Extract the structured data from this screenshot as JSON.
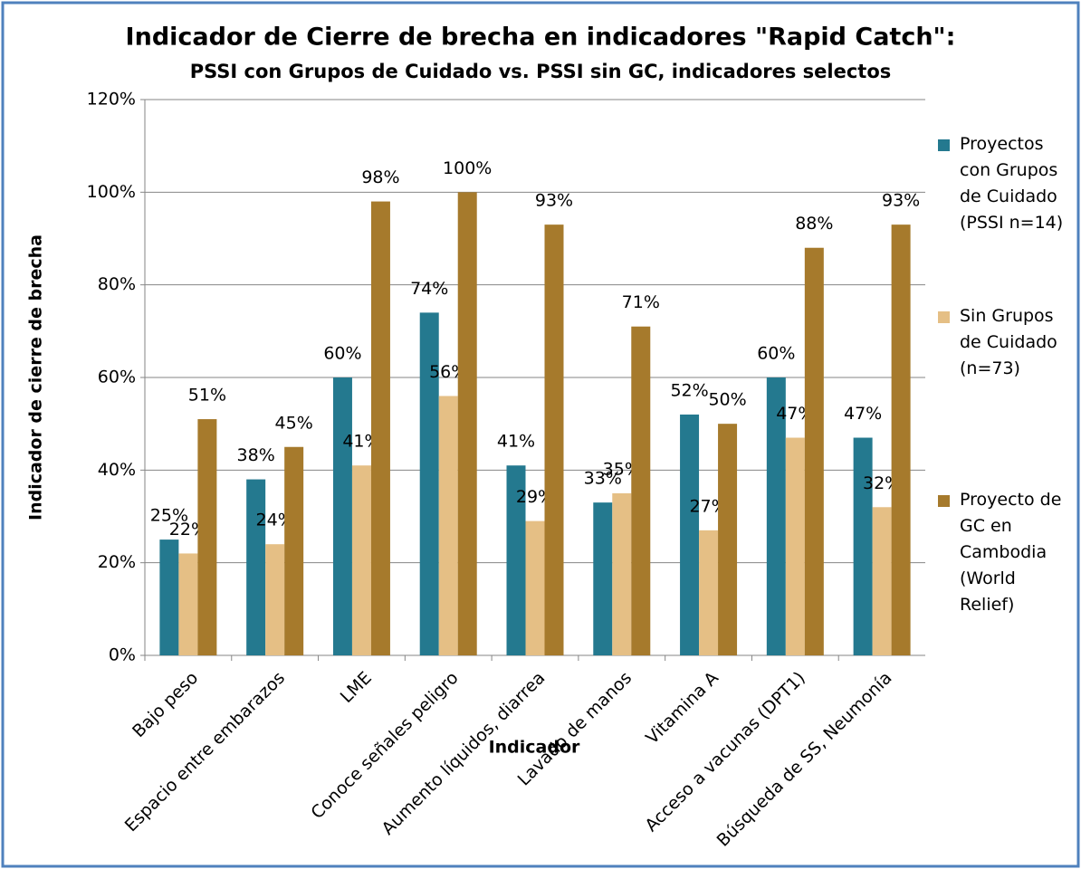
{
  "chart_data": {
    "type": "bar",
    "title": "Indicador de Cierre de brecha en indicadores \"Rapid Catch\":",
    "subtitle": "PSSI con Grupos de Cuidado vs. PSSI sin GC, indicadores selectos",
    "x_label": "Indicador",
    "y_label": "Indicador de cierre de brecha",
    "categories": [
      "Bajo peso",
      "Espacio entre embarazos",
      "LME",
      "Conoce señales peligro",
      "Aumento líquidos, diarrea",
      "Lavado de manos",
      "Vitamina A",
      "Acceso a vacunas (DPT1)",
      "Búsqueda de SS, Neumonía"
    ],
    "series": [
      {
        "name": "Proyectos con Grupos de Cuidado (PSSI n=14)",
        "color": "#24798f",
        "values": [
          25,
          38,
          60,
          74,
          41,
          33,
          52,
          60,
          47
        ],
        "value_labels": [
          "25%",
          "38%",
          "60%",
          "74%",
          "41%",
          "33%",
          "52%",
          "60%",
          "47%"
        ]
      },
      {
        "name": "Sin Grupos de Cuidado (n=73)",
        "color": "#e5bf85",
        "values": [
          22,
          24,
          41,
          56,
          29,
          35,
          27,
          47,
          32
        ],
        "value_labels": [
          "22%",
          "24%",
          "41%",
          "56%",
          "29%",
          "35%",
          "27%",
          "47%",
          "32%"
        ]
      },
      {
        "name": "Proyecto de GC en Cambodia (World Relief)",
        "color": "#a67a2c",
        "values": [
          51,
          45,
          98,
          100,
          93,
          71,
          50,
          88,
          93
        ],
        "value_labels": [
          "51%",
          "45%",
          "98%",
          "100%",
          "93%",
          "71%",
          "50%",
          "88%",
          "93%"
        ]
      }
    ],
    "ylim": [
      0,
      120
    ],
    "yticks": [
      {
        "value": 0,
        "label": "0%"
      },
      {
        "value": 20,
        "label": "20%"
      },
      {
        "value": 40,
        "label": "40%"
      },
      {
        "value": 60,
        "label": "60%"
      },
      {
        "value": 80,
        "label": "80%"
      },
      {
        "value": 100,
        "label": "100%"
      },
      {
        "value": 120,
        "label": "120%"
      }
    ],
    "grid": true,
    "legend": "right"
  }
}
